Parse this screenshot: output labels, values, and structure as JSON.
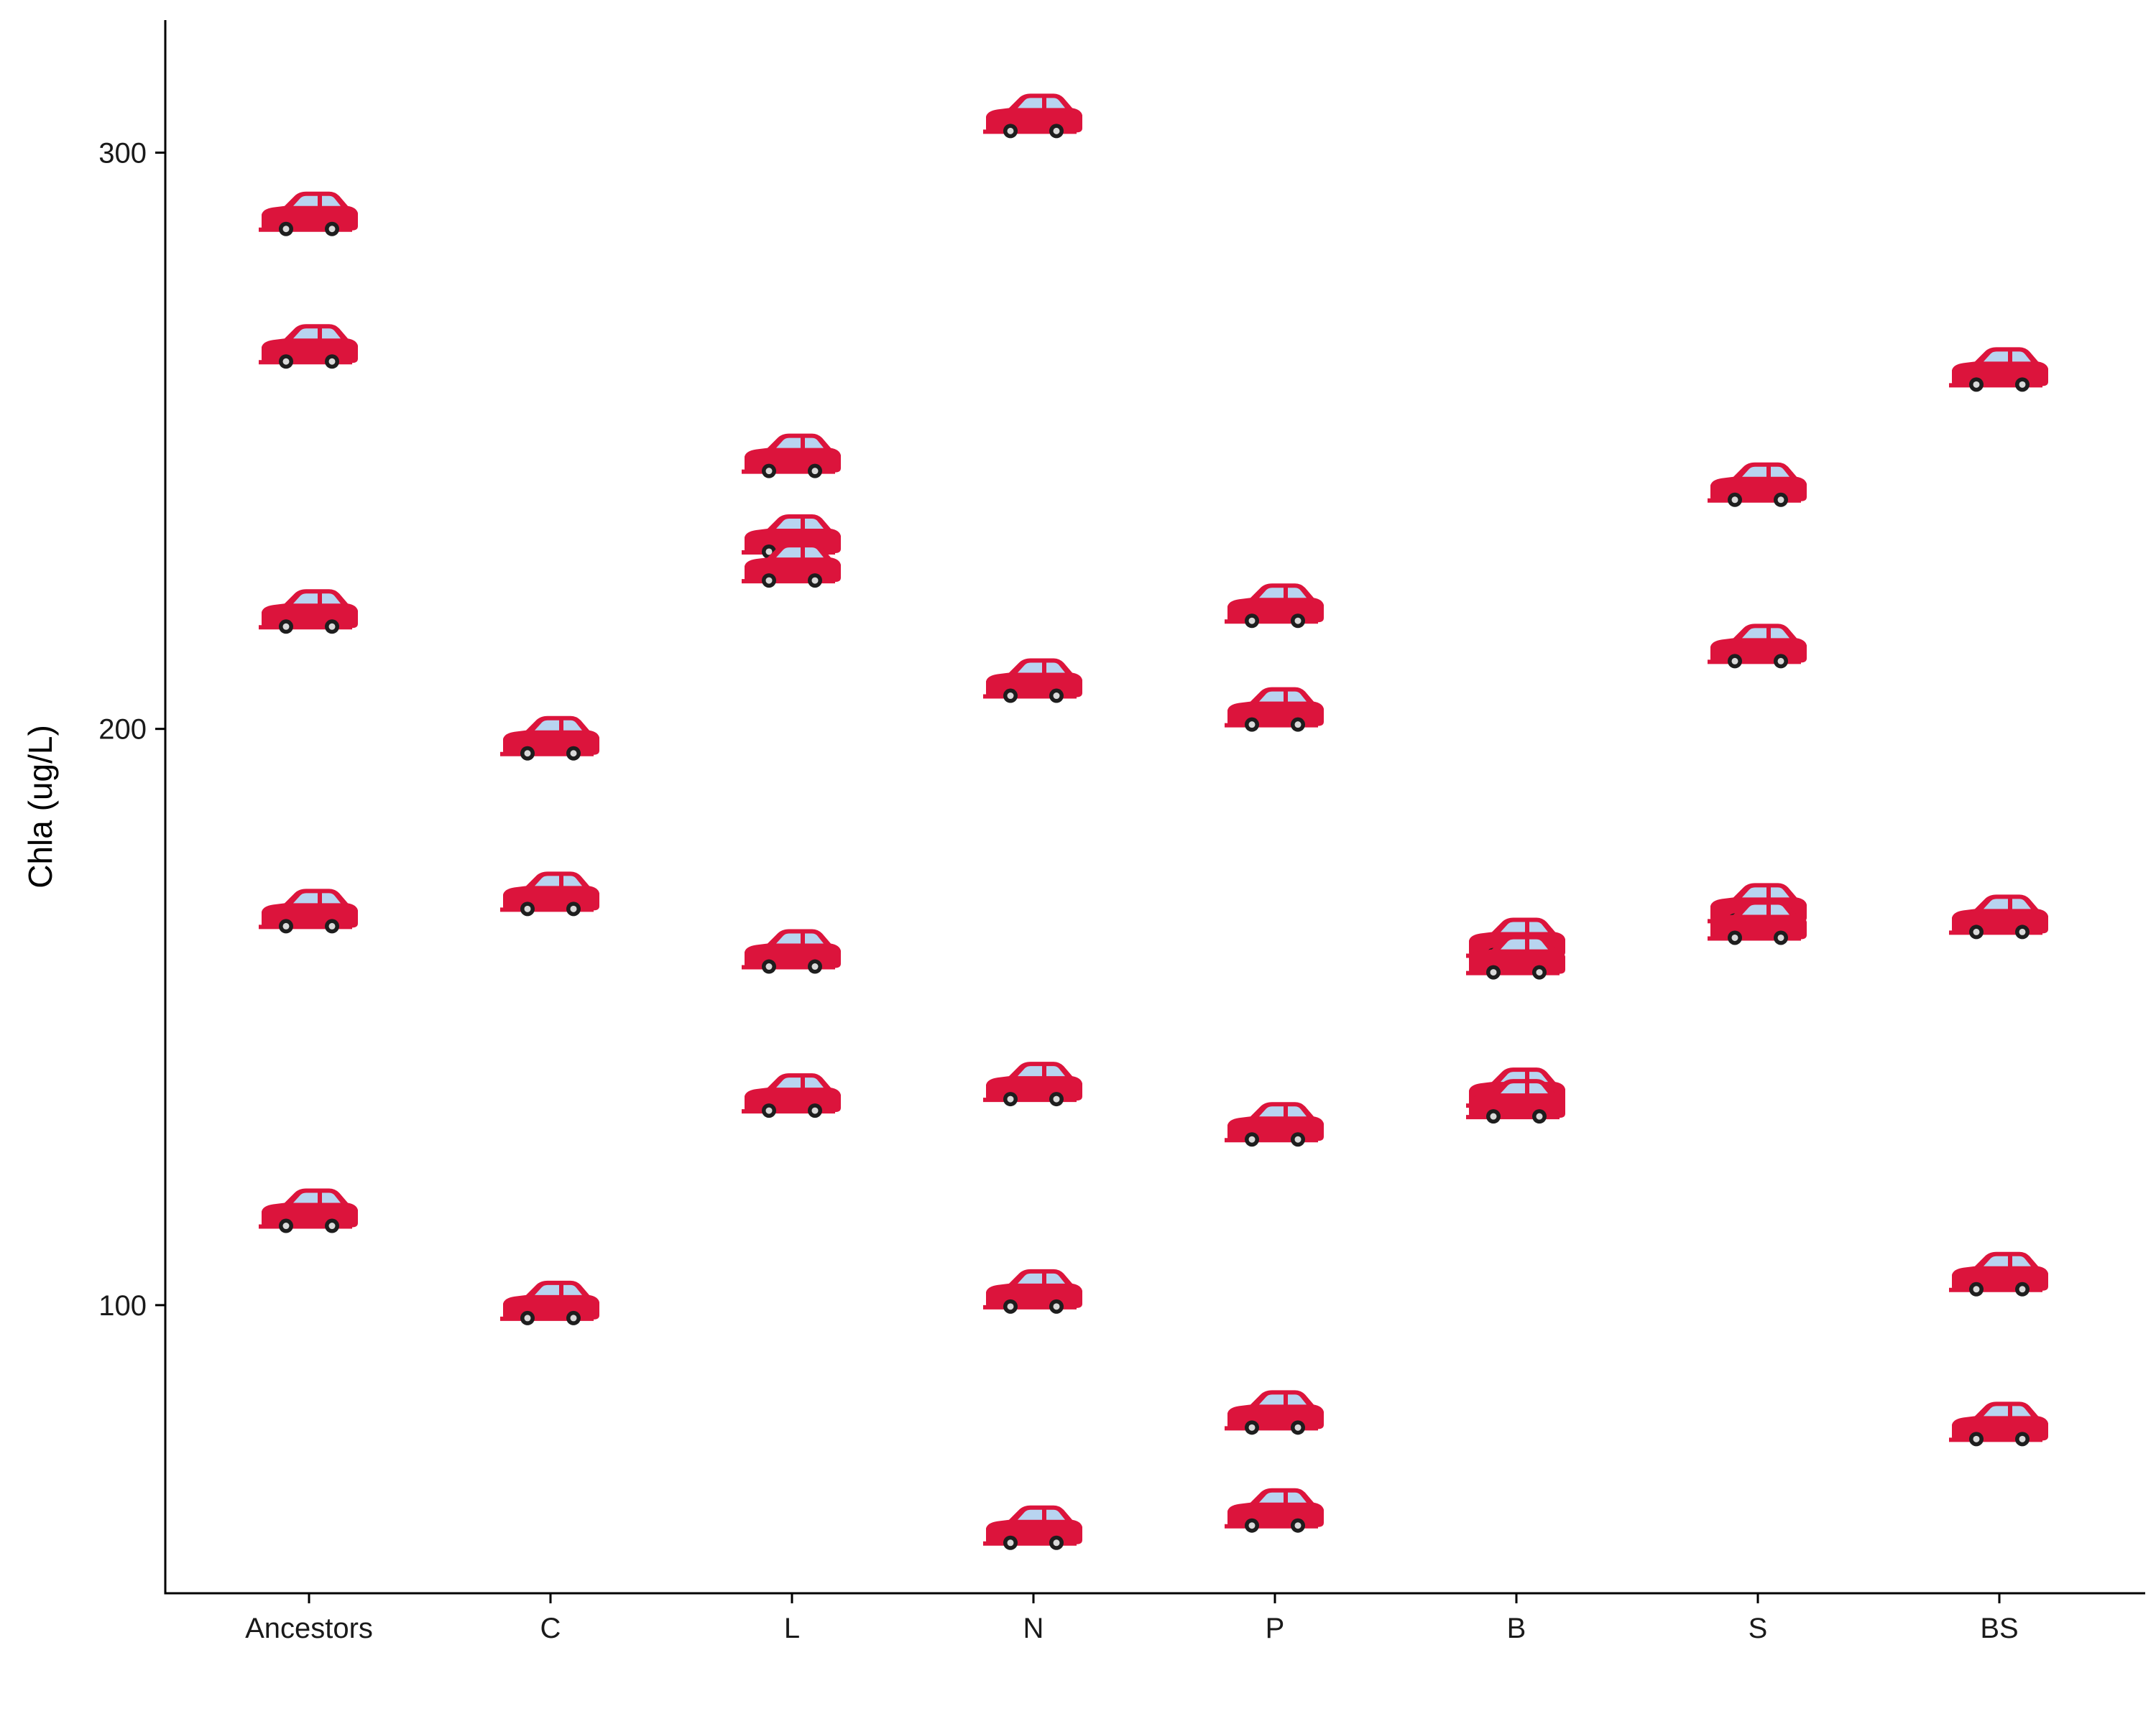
{
  "colors": {
    "car_body": "#dc143c",
    "car_window": "#b8d4f0",
    "wheel": "#1e1e1e",
    "hub": "#d9d9d9"
  },
  "icon": "car-icon",
  "chart_data": {
    "type": "scatter",
    "marker": "car-icon",
    "title": "",
    "xlabel": "",
    "ylabel": "Chla (ug/L)",
    "categories": [
      "Ancestors",
      "C",
      "L",
      "N",
      "P",
      "B",
      "S",
      "BS"
    ],
    "yticks": [
      100,
      200,
      300
    ],
    "ylim": [
      50,
      323
    ],
    "grid": false,
    "points": {
      "Ancestors": [
        289,
        266,
        220,
        168,
        116
      ],
      "C": [
        198,
        171,
        100
      ],
      "L": [
        247,
        233,
        228,
        161,
        136
      ],
      "N": [
        306,
        208,
        138,
        102,
        61
      ],
      "P": [
        221,
        203,
        131,
        81,
        64
      ],
      "B": [
        163,
        160,
        137,
        135
      ],
      "S": [
        242,
        214,
        169,
        166
      ],
      "BS": [
        262,
        167,
        105,
        79
      ]
    }
  }
}
